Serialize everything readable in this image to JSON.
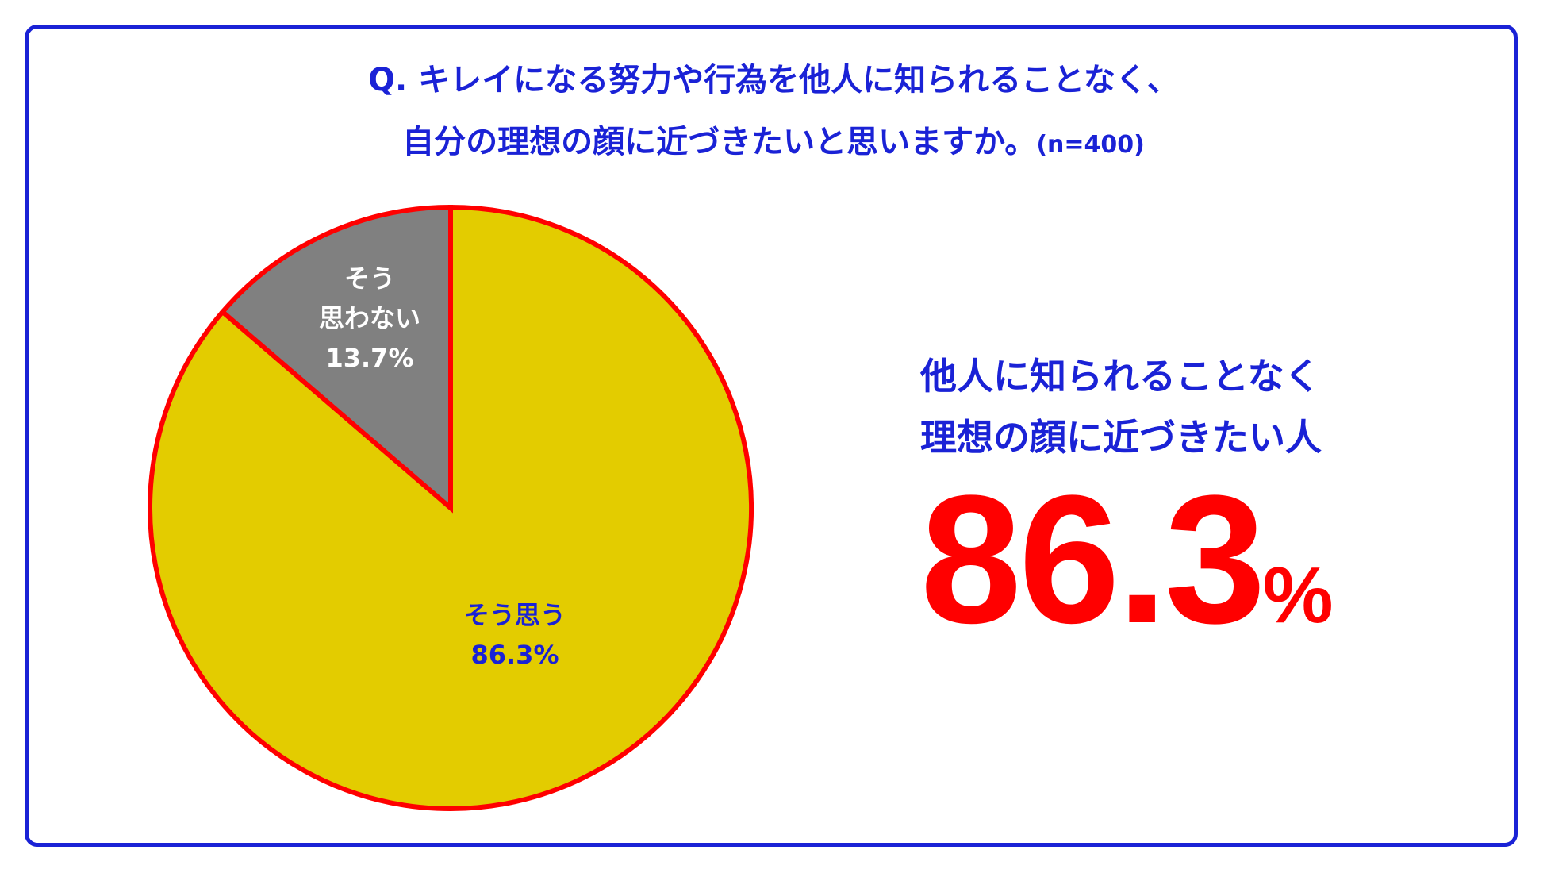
{
  "title": {
    "line1": "Q. キレイになる努力や行為を他人に知られることなく、",
    "line2": "自分の理想の顔に近づきたいと思いますか。",
    "n": "(n=400)"
  },
  "chart_data": {
    "type": "pie",
    "slices": [
      {
        "label_lines": [
          "そう思う"
        ],
        "value": 86.3,
        "value_label": "86.3%",
        "color": "#e3cc00",
        "label_color": "#1a22d6"
      },
      {
        "label_lines": [
          "そう",
          "思わない"
        ],
        "value": 13.7,
        "value_label": "13.7%",
        "color": "#808080",
        "label_color": "#ffffff"
      }
    ],
    "border_color": "#ff0000",
    "start": "12 o'clock, clockwise"
  },
  "highlight": {
    "line1": "他人に知られることなく",
    "line2": "理想の顔に近づきたい人",
    "value": "86.3",
    "unit": "%"
  },
  "colors": {
    "frame": "#1a22d6",
    "text": "#1a22d6",
    "accent": "#ff0000"
  }
}
